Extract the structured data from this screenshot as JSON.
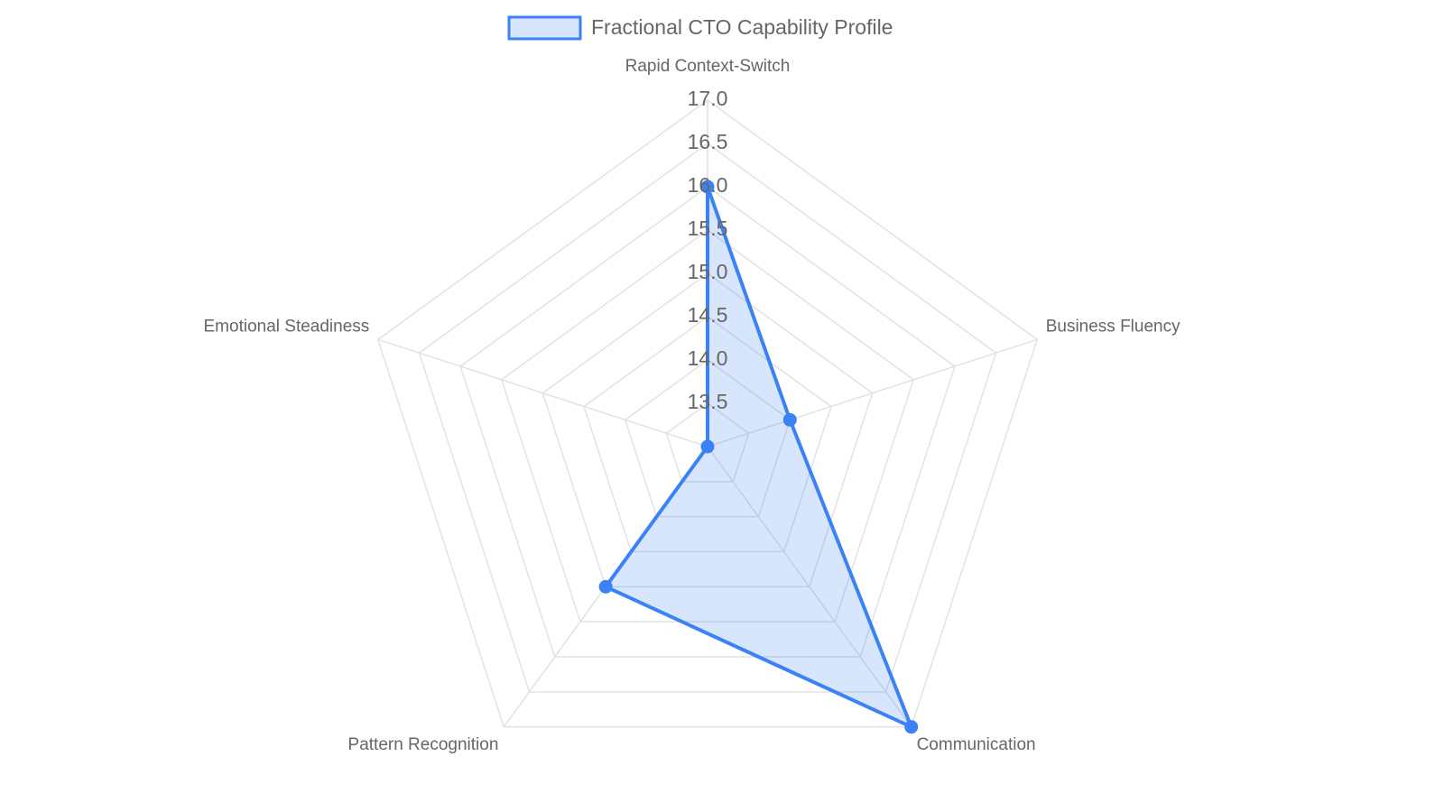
{
  "chart_data": {
    "type": "radar",
    "categories": [
      "Rapid Context-Switch",
      "Business Fluency",
      "Communication",
      "Pattern Recognition",
      "Emotional Steadiness"
    ],
    "series": [
      {
        "name": "Fractional CTO Capability Profile",
        "color": "#3b82f6",
        "values": [
          16,
          14,
          17,
          15,
          13
        ]
      }
    ],
    "rlim": [
      13,
      17
    ],
    "rticks": [
      13.5,
      {
        "value": 14,
        "label": "14.0"
      },
      14.5,
      {
        "value": 15,
        "label": "15.0"
      },
      15.5,
      {
        "value": 16,
        "label": "16.0"
      },
      16.5,
      {
        "value": 17,
        "label": "17.0"
      }
    ],
    "grid": true,
    "legend": "top"
  }
}
